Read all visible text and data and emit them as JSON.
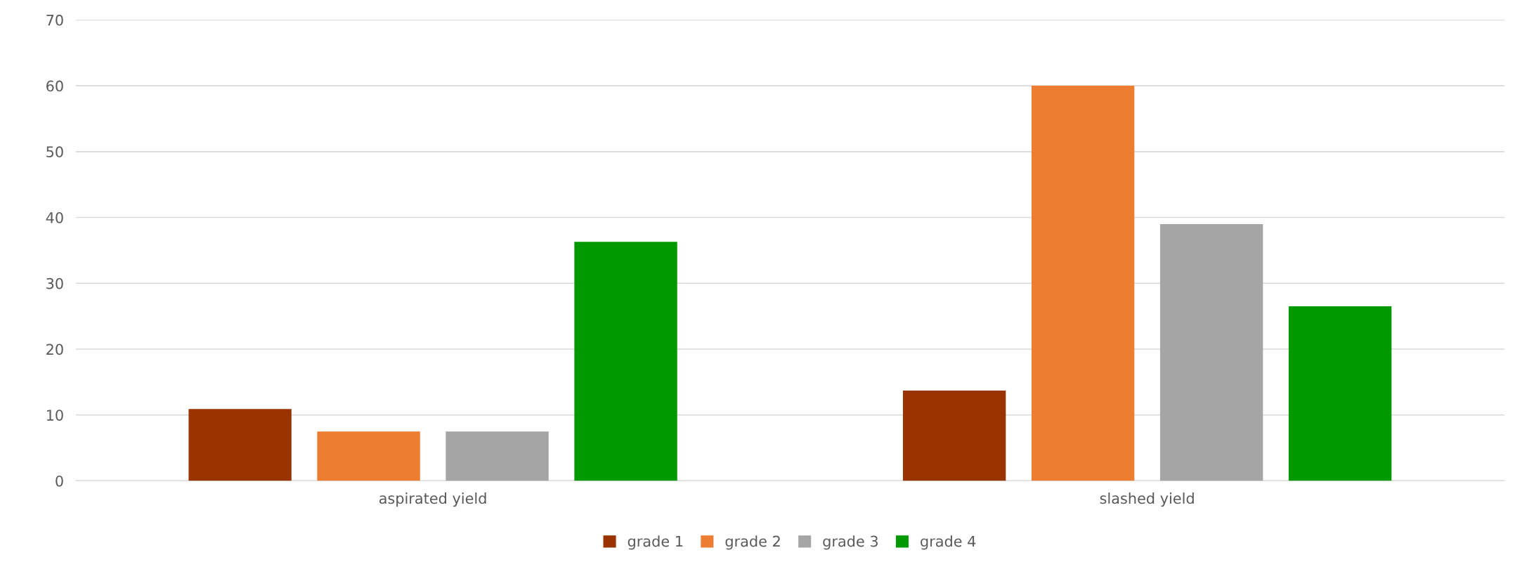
{
  "chart_data": {
    "type": "bar",
    "categories": [
      "aspirated yield",
      "slashed yield"
    ],
    "series": [
      {
        "name": "grade 1",
        "color": "#993300",
        "values": [
          10.9,
          13.7
        ]
      },
      {
        "name": "grade 2",
        "color": "#ed7d31",
        "values": [
          7.5,
          60
        ]
      },
      {
        "name": "grade 3",
        "color": "#a5a5a5",
        "values": [
          7.5,
          39
        ]
      },
      {
        "name": "grade 4",
        "color": "#009900",
        "values": [
          36.3,
          26.5
        ]
      }
    ],
    "ylim": [
      0,
      70
    ],
    "yticks": [
      0,
      10,
      20,
      30,
      40,
      50,
      60,
      70
    ],
    "grid": "y",
    "legend": "bottom"
  }
}
